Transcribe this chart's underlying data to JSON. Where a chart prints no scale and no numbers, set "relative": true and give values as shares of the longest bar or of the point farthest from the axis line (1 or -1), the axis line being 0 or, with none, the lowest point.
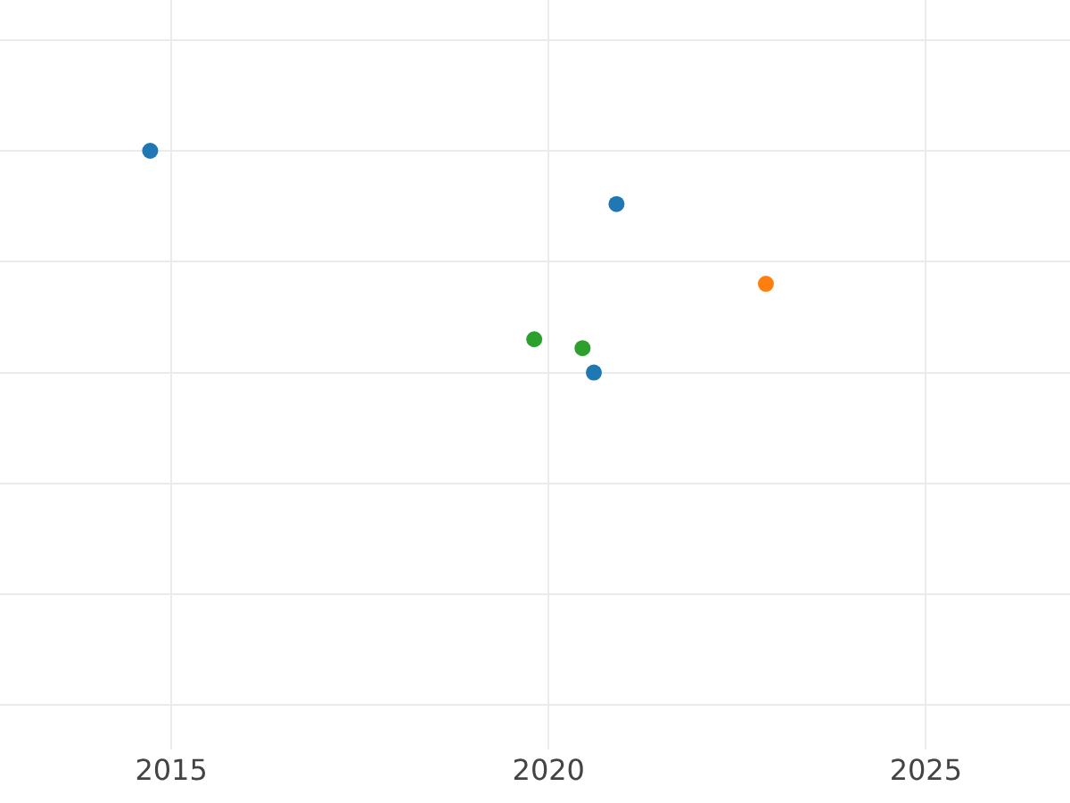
{
  "chart_data": {
    "type": "scatter",
    "relative": true,
    "grid": true,
    "marker": "circle",
    "xlim": [
      2012.73,
      2026.91
    ],
    "xticks": [
      2015,
      2020,
      2025
    ],
    "series": [
      {
        "color": "#1f77b4",
        "x": [
          2014.72,
          2020.9,
          2020.6
        ],
        "values": [
          1,
          0.76,
          0
        ]
      },
      {
        "color": "#ff7f0e",
        "x": [
          2022.88
        ],
        "values": [
          0.4
        ]
      },
      {
        "color": "#2ca02c",
        "x": [
          2019.81,
          2020.45
        ],
        "values": [
          0.15,
          0.11
        ]
      }
    ]
  }
}
